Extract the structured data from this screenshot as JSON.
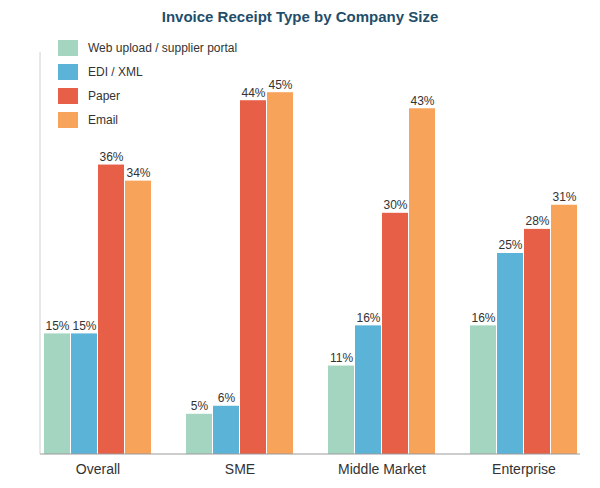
{
  "chart_data": {
    "type": "bar",
    "title": "Invoice Receipt Type by Company Size",
    "categories": [
      "Overall",
      "SME",
      "Middle Market",
      "Enterprise"
    ],
    "series": [
      {
        "name": "Web upload / supplier portal",
        "color": "#a3d5c0",
        "values": [
          15,
          5,
          11,
          16
        ],
        "value_labels": [
          "15%",
          "5%",
          "11%",
          "16%"
        ]
      },
      {
        "name": "EDI / XML",
        "color": "#5bb3d8",
        "values": [
          15,
          6,
          16,
          25
        ],
        "value_labels": [
          "15%",
          "6%",
          "16%",
          "25%"
        ]
      },
      {
        "name": "Paper",
        "color": "#e85f48",
        "values": [
          36,
          44,
          30,
          28
        ],
        "value_labels": [
          "36%",
          "44%",
          "30%",
          "28%"
        ]
      },
      {
        "name": "Email",
        "color": "#f8a35a",
        "values": [
          34,
          45,
          43,
          31
        ],
        "value_labels": [
          "34%",
          "45%",
          "43%",
          "31%"
        ]
      }
    ],
    "ylim": [
      0,
      50
    ],
    "legend": "top-left",
    "data_labels": true,
    "tick_labels": "x"
  }
}
